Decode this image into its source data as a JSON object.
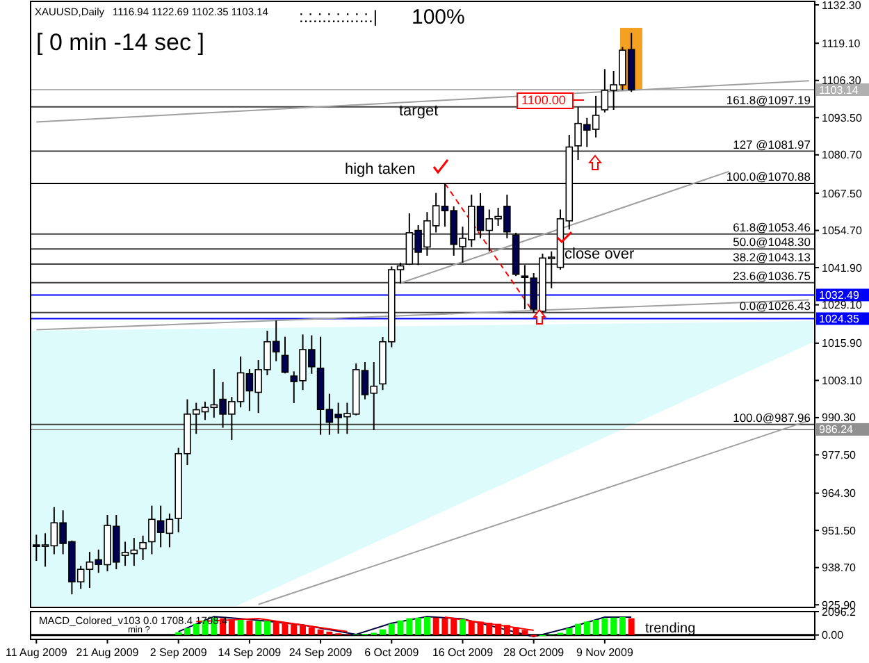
{
  "chart_data": [
    {
      "type": "candlestick",
      "title": "XAUUSD,Daily",
      "subtitle": "1116.94 1122.69 1102.35 1103.14",
      "categories": [
        null,
        null,
        null,
        null,
        null,
        null,
        null,
        null,
        null,
        null,
        null,
        null,
        null,
        null,
        null,
        null,
        null,
        null,
        null,
        null,
        null,
        null,
        null,
        null,
        null,
        null,
        null,
        null,
        null,
        null,
        null,
        null,
        null,
        null,
        null,
        null,
        null,
        null,
        null,
        null,
        null,
        null,
        null,
        null,
        null,
        null,
        null,
        null,
        null,
        null,
        null,
        null,
        null,
        null,
        null,
        null,
        null,
        null,
        null,
        null,
        null,
        null,
        null,
        null,
        null,
        null,
        null,
        null,
        null,
        null,
        null,
        null,
        null,
        null,
        null,
        null,
        null,
        null,
        null,
        null,
        null,
        null,
        null,
        null,
        null,
        null,
        null,
        null
      ],
      "ohlc": [
        [
          946.5,
          950,
          941,
          946
        ],
        [
          946,
          950.5,
          939,
          946.5
        ],
        [
          946.2,
          959.5,
          943.3,
          954.1
        ],
        [
          954.1,
          958.4,
          943.3,
          947
        ],
        [
          947.6,
          948,
          929.5,
          933.8
        ],
        [
          933.8,
          939.3,
          931.4,
          938.1
        ],
        [
          938.1,
          944.1,
          931.7,
          940.6
        ],
        [
          941.4,
          944.9,
          936.9,
          939.8
        ],
        [
          939.7,
          956.8,
          937.4,
          953.2
        ],
        [
          952.9,
          956.8,
          938.1,
          940.6
        ],
        [
          942.9,
          947.6,
          939.3,
          943.9
        ],
        [
          943.5,
          948.9,
          939.3,
          944.7
        ],
        [
          945.2,
          949.7,
          941.3,
          947.3
        ],
        [
          947.6,
          960,
          943.3,
          955.3
        ],
        [
          954.8,
          960,
          945.7,
          950.8
        ],
        [
          950.5,
          957.3,
          945.7,
          955.3
        ],
        [
          955.6,
          979.9,
          950.8,
          977.9
        ],
        [
          977.9,
          996.6,
          974,
          991.5
        ],
        [
          991.5,
          995.4,
          984.7,
          993
        ],
        [
          992.3,
          995.8,
          989.5,
          993.8
        ],
        [
          993.8,
          1007,
          990.3,
          994.7
        ],
        [
          996.6,
          1002.5,
          986.8,
          991.5
        ],
        [
          991.5,
          997.4,
          982.6,
          995.8
        ],
        [
          995.8,
          1011.3,
          993.8,
          1005.7
        ],
        [
          1005.4,
          1007,
          992.6,
          999.5
        ],
        [
          999,
          1010.1,
          991.9,
          1006.8
        ],
        [
          1006.8,
          1020.2,
          1004.9,
          1016.4
        ],
        [
          1016.5,
          1023.7,
          1009.7,
          1012.9
        ],
        [
          1011.7,
          1018.1,
          1005.5,
          1005.9
        ],
        [
          1004.6,
          1006.2,
          995.3,
          1002.7
        ],
        [
          1003,
          1018.9,
          999.8,
          1013.7
        ],
        [
          1013.7,
          1018.6,
          1005.4,
          1007.8
        ],
        [
          1007.3,
          1018.1,
          984.4,
          993.1
        ],
        [
          993.1,
          998.5,
          984.4,
          988.7
        ],
        [
          991.4,
          995.4,
          984.8,
          990.3
        ],
        [
          990.6,
          995.4,
          984.7,
          991.7
        ],
        [
          991.5,
          1008.9,
          991.1,
          1006.8
        ],
        [
          1006.5,
          1009.4,
          996.6,
          998.2
        ],
        [
          998.7,
          1009.4,
          986,
          1001.1
        ],
        [
          1001.9,
          1018,
          999.8,
          1016.4
        ],
        [
          1016.4,
          1042.3,
          1014.5,
          1041.2
        ],
        [
          1041.2,
          1043.6,
          1036.4,
          1042.5
        ],
        [
          1043.1,
          1060.6,
          1042.8,
          1053.9
        ],
        [
          1054.7,
          1056.5,
          1042.8,
          1047.2
        ],
        [
          1049,
          1061,
          1046,
          1058
        ],
        [
          1056.3,
          1067.6,
          1054,
          1063.2
        ],
        [
          1063,
          1070.88,
          1056,
          1061.5
        ],
        [
          1061.5,
          1063,
          1046,
          1049.9
        ],
        [
          1049.1,
          1056,
          1043.6,
          1052
        ],
        [
          1051.5,
          1067,
          1049,
          1063
        ],
        [
          1063,
          1067.5,
          1052,
          1054.7
        ],
        [
          1054.7,
          1061.9,
          1047.5,
          1058.7
        ],
        [
          1058.7,
          1062.5,
          1056.3,
          1059.5
        ],
        [
          1063,
          1067,
          1052,
          1054.2
        ],
        [
          1053.1,
          1053.9,
          1039,
          1039.6
        ],
        [
          1039,
          1042.8,
          1027.6,
          1038.8
        ],
        [
          1038.3,
          1040,
          1026.43,
          1027.6
        ],
        [
          1026.9,
          1046.7,
          1026.5,
          1045.2
        ],
        [
          1045.2,
          1047.5,
          1034.8,
          1045.5
        ],
        [
          1042,
          1061.9,
          1041.2,
          1058.7
        ],
        [
          1058,
          1087.6,
          1055,
          1083.4
        ],
        [
          1083.8,
          1097.2,
          1079,
          1091.5
        ],
        [
          1091.1,
          1093.4,
          1083.4,
          1089.2
        ],
        [
          1089.5,
          1101,
          1086.7,
          1094.3
        ],
        [
          1096.2,
          1110.2,
          1095.3,
          1102.9
        ],
        [
          1102.9,
          1109.6,
          1096.2,
          1104.8
        ],
        [
          1104.8,
          1117.8,
          1102.9,
          1116.7
        ],
        [
          1116.94,
          1122.69,
          1102.35,
          1103.14
        ],
        null,
        null,
        null,
        null,
        null,
        null,
        null,
        null,
        null,
        null,
        null,
        null,
        null,
        null,
        null,
        null,
        null,
        null,
        null,
        null
      ],
      "series": [
        {
          "type": "line",
          "color": "#a0a0a0",
          "values": [
            null,
            null,
            null,
            null,
            null,
            null,
            null,
            null,
            null,
            null,
            null,
            null,
            null,
            null,
            null,
            null,
            null,
            null,
            null,
            null,
            null,
            null,
            null,
            null,
            null,
            926,
            null,
            null,
            null,
            null,
            null,
            null,
            null,
            null,
            null,
            null,
            null,
            null,
            null,
            null,
            null,
            null,
            null,
            null,
            null,
            null,
            null,
            null,
            null,
            null,
            null,
            null,
            null,
            null,
            null,
            null,
            null,
            null,
            null,
            null,
            null,
            null,
            null,
            null,
            null,
            null,
            null,
            null,
            null,
            null,
            null,
            null,
            null,
            null,
            null,
            null,
            null,
            null,
            null,
            null,
            null,
            null,
            null,
            null,
            null,
            null,
            null,
            989.3
          ]
        },
        {
          "type": "line",
          "color": "#a0a0a0",
          "values": [
            1092,
            null,
            null,
            null,
            null,
            null,
            null,
            null,
            null,
            null,
            null,
            null,
            null,
            null,
            null,
            null,
            null,
            null,
            null,
            null,
            null,
            null,
            null,
            null,
            null,
            null,
            null,
            null,
            null,
            null,
            null,
            null,
            null,
            null,
            null,
            null,
            null,
            null,
            null,
            null,
            null,
            null,
            null,
            null,
            null,
            null,
            null,
            null,
            null,
            null,
            null,
            null,
            null,
            null,
            null,
            null,
            null,
            null,
            null,
            null,
            null,
            null,
            null,
            null,
            null,
            null,
            null,
            null,
            null,
            null,
            null,
            null,
            null,
            null,
            null,
            null,
            null,
            null,
            null,
            null,
            null,
            null,
            null,
            null,
            null,
            null,
            null,
            1106.2
          ]
        },
        {
          "type": "line",
          "color": "#a0a0a0",
          "values": [
            null,
            null,
            null,
            null,
            null,
            null,
            null,
            null,
            null,
            null,
            null,
            null,
            null,
            null,
            null,
            null,
            null,
            null,
            null,
            null,
            null,
            null,
            null,
            null,
            null,
            null,
            null,
            null,
            null,
            null,
            null,
            null,
            null,
            null,
            null,
            null,
            null,
            null,
            null,
            null,
            null,
            1036.6,
            null,
            null,
            null,
            null,
            null,
            null,
            null,
            null,
            null,
            null,
            null,
            null,
            null,
            null,
            null,
            null,
            null,
            null,
            null,
            null,
            null,
            null,
            null,
            null,
            null,
            null,
            null,
            null,
            null,
            null,
            null,
            null,
            null,
            null,
            null,
            null,
            1075,
            null,
            null,
            null,
            null,
            null,
            null,
            null,
            null,
            null
          ]
        },
        {
          "type": "line",
          "color": "#a0a0a0",
          "values": [
            1020.5,
            null,
            null,
            null,
            null,
            null,
            null,
            null,
            null,
            null,
            null,
            null,
            null,
            null,
            null,
            null,
            null,
            null,
            null,
            null,
            null,
            null,
            null,
            null,
            null,
            null,
            null,
            null,
            null,
            null,
            null,
            null,
            null,
            null,
            null,
            null,
            null,
            null,
            null,
            null,
            null,
            null,
            null,
            null,
            null,
            null,
            null,
            null,
            null,
            null,
            null,
            null,
            null,
            null,
            null,
            null,
            null,
            null,
            null,
            null,
            null,
            null,
            null,
            null,
            null,
            null,
            null,
            null,
            null,
            null,
            null,
            null,
            null,
            null,
            null,
            null,
            null,
            null,
            null,
            null,
            null,
            null,
            null,
            null,
            null,
            null,
            null,
            1030.8
          ]
        },
        {
          "type": "line",
          "color": "#ff0000",
          "line_style": "dashed",
          "values": [
            null,
            null,
            null,
            null,
            null,
            null,
            null,
            null,
            null,
            null,
            null,
            null,
            null,
            null,
            null,
            null,
            null,
            null,
            null,
            null,
            null,
            null,
            null,
            null,
            null,
            null,
            null,
            null,
            null,
            null,
            null,
            null,
            null,
            null,
            null,
            null,
            null,
            null,
            null,
            null,
            null,
            null,
            null,
            null,
            null,
            null,
            1070.88,
            null,
            null,
            null,
            null,
            null,
            null,
            null,
            null,
            null,
            1026.43,
            null,
            null,
            null,
            null,
            null,
            null,
            null,
            null,
            null,
            null,
            null,
            null,
            null,
            null,
            null,
            null,
            null,
            null,
            null,
            null,
            null,
            null,
            null,
            null,
            null,
            null,
            null,
            null,
            null,
            null,
            null
          ]
        }
      ],
      "ylim": [
        925,
        1133.5
      ],
      "yticks": [
        {
          "value": 1132.3,
          "label": "1132.30"
        },
        {
          "value": 1119.1,
          "label": "1119.10"
        },
        {
          "value": 1106.3,
          "label": "1106.30"
        },
        {
          "value": 1093.5,
          "label": "1093.50"
        },
        {
          "value": 1080.7,
          "label": "1080.70"
        },
        {
          "value": 1067.5,
          "label": "1067.50"
        },
        {
          "value": 1054.7,
          "label": "1054.70"
        },
        {
          "value": 1041.9,
          "label": "1041.90"
        },
        {
          "value": 1029.1,
          "label": "1029.10"
        },
        {
          "value": 1015.9,
          "label": "1015.90"
        },
        {
          "value": 1003.1,
          "label": "1003.10"
        },
        {
          "value": 990.3,
          "label": "990.30"
        },
        {
          "value": 977.5,
          "label": "977.50"
        },
        {
          "value": 964.3,
          "label": "964.30"
        },
        {
          "value": 951.5,
          "label": "951.50"
        },
        {
          "value": 938.7,
          "label": "938.70"
        },
        {
          "value": 925.9,
          "label": "925.90"
        }
      ],
      "ref_lines": [
        {
          "axis": "y",
          "value": 1103.14,
          "label": "1103.14",
          "color": "#b0b0b0"
        },
        {
          "axis": "y",
          "value": 1032.49,
          "label": "1032.49",
          "color": "#0000ff"
        },
        {
          "axis": "y",
          "value": 1024.35,
          "label": "1024.35",
          "color": "#0000ff"
        },
        {
          "axis": "y",
          "value": 986.24,
          "label": "986.24",
          "color": "#909090"
        },
        {
          "axis": "y",
          "value": 1097.19,
          "color": "#404040"
        },
        {
          "axis": "y",
          "value": 1081.97,
          "color": "#404040"
        },
        {
          "axis": "y",
          "value": 1070.88,
          "color": "#000000"
        },
        {
          "axis": "y",
          "value": 1053.46,
          "color": "#404040"
        },
        {
          "axis": "y",
          "value": 1048.3,
          "color": "#404040"
        },
        {
          "axis": "y",
          "value": 1043.13,
          "color": "#404040"
        },
        {
          "axis": "y",
          "value": 1036.75,
          "color": "#404040"
        },
        {
          "axis": "y",
          "value": 1026.43,
          "color": "#404040"
        },
        {
          "axis": "y",
          "value": 987.96,
          "color": "#404040"
        }
      ],
      "annotations": [
        "[ 0 min -14 sec ]",
        ":.:.:.:.:.:.:.:.|",
        "100%",
        "1100.00",
        "target",
        "high taken",
        "close over",
        {
          "text": "161.8@1097.19",
          "y": 1097.19
        },
        {
          "text": "127 @1081.97",
          "y": 1081.97
        },
        {
          "text": "100.0@1070.88",
          "y": 1070.88
        },
        {
          "text": "61.8@1053.46",
          "y": 1053.46
        },
        {
          "text": "50.0@1048.30",
          "y": 1048.3
        },
        {
          "text": "38.2@1043.13",
          "y": 1043.13
        },
        {
          "text": "23.6@1036.75",
          "y": 1036.75
        },
        {
          "text": "0.0@1026.43",
          "y": 1026.43
        },
        {
          "text": "100.0@987.96",
          "y": 987.96
        }
      ]
    },
    {
      "type": "bar",
      "title": "MACD_Colored_v103 0.0 1708.4 1708.4",
      "categories": [
        "11 Aug 2009",
        null,
        null,
        null,
        null,
        null,
        null,
        null,
        "21 Aug 2009",
        null,
        null,
        null,
        null,
        null,
        null,
        null,
        "2 Sep 2009",
        null,
        null,
        null,
        null,
        null,
        null,
        null,
        "14 Sep 2009",
        null,
        null,
        null,
        null,
        null,
        null,
        null,
        "24 Sep 2009",
        null,
        null,
        null,
        null,
        null,
        null,
        null,
        "6 Oct 2009",
        null,
        null,
        null,
        null,
        null,
        null,
        null,
        "16 Oct 2009",
        null,
        null,
        null,
        null,
        null,
        null,
        null,
        "28 Oct 2009",
        null,
        null,
        null,
        null,
        null,
        null,
        null,
        "9 Nov 2009",
        null,
        null,
        null,
        null,
        null,
        null,
        null,
        null,
        null,
        null,
        null,
        null,
        null,
        null,
        null,
        null,
        null,
        null,
        null,
        null,
        null,
        null,
        null
      ],
      "series": [
        {
          "type": "bar",
          "values": [
            null,
            null,
            null,
            null,
            null,
            null,
            null,
            null,
            null,
            null,
            null,
            null,
            null,
            null,
            null,
            null,
            250,
            600,
            1000,
            1300,
            1550,
            1500,
            1400,
            1350,
            1300,
            1250,
            1250,
            1200,
            1100,
            950,
            850,
            700,
            500,
            300,
            150,
            60,
            50,
            100,
            200,
            500,
            1000,
            1300,
            1500,
            1550,
            1600,
            1550,
            1500,
            1450,
            1400,
            1250,
            1200,
            1100,
            1000,
            900,
            700,
            450,
            -150,
            -100,
            50,
            200,
            600,
            1000,
            1200,
            1350,
            1500,
            1550,
            1600,
            1500,
            null,
            null,
            null,
            null,
            null,
            null,
            null,
            null,
            null,
            null,
            null,
            null,
            null,
            null,
            null,
            null,
            null,
            null,
            null,
            null
          ],
          "colors": [
            null,
            null,
            null,
            null,
            null,
            null,
            null,
            null,
            null,
            null,
            null,
            null,
            null,
            null,
            null,
            null,
            "#00ff00",
            "#00ff00",
            "#00ff00",
            "#00ff00",
            "#00ff00",
            "#ff0000",
            "#ff0000",
            "#00ff00",
            "#ff0000",
            "#00ff00",
            "#00ff00",
            "#ff0000",
            "#ff0000",
            "#ff0000",
            "#ff0000",
            "#ff0000",
            "#ff0000",
            "#ff0000",
            "#ff0000",
            "#ff0000",
            "#00ff00",
            "#00ff00",
            "#00ff00",
            "#00ff00",
            "#00ff00",
            "#00ff00",
            "#00ff00",
            "#00ff00",
            "#00ff00",
            "#ff0000",
            "#ff0000",
            "#ff0000",
            "#00ff00",
            "#ff0000",
            "#ff0000",
            "#ff0000",
            "#ff0000",
            "#ff0000",
            "#ff0000",
            "#ff0000",
            "#ff0000",
            "#00ff00",
            "#00ff00",
            "#00ff00",
            "#00ff00",
            "#00ff00",
            "#00ff00",
            "#00ff00",
            "#00ff00",
            "#00ff00",
            "#00ff00",
            "#ff0000",
            null,
            null,
            null,
            null,
            null,
            null,
            null,
            null,
            null,
            null,
            null,
            null,
            null,
            null,
            null,
            null,
            null,
            null,
            null,
            null
          ]
        },
        {
          "type": "line",
          "color": "#000040",
          "values": [
            null,
            null,
            null,
            null,
            null,
            null,
            null,
            null,
            null,
            null,
            null,
            null,
            null,
            null,
            null,
            null,
            300,
            null,
            null,
            null,
            1650,
            null,
            null,
            null,
            1400,
            null,
            null,
            null,
            null,
            null,
            900,
            null,
            null,
            null,
            null,
            null,
            50,
            null,
            null,
            null,
            1050,
            null,
            null,
            null,
            1650,
            null,
            null,
            null,
            1450,
            null,
            null,
            null,
            null,
            null,
            null,
            null,
            -150,
            null,
            null,
            null,
            650,
            null,
            null,
            null,
            1600,
            null,
            null,
            1600,
            null,
            null,
            null,
            null,
            null,
            null,
            null,
            null,
            null,
            null,
            null,
            null,
            null,
            null,
            null,
            null,
            null,
            null,
            null,
            null
          ]
        },
        {
          "type": "line",
          "color": "#ff0000",
          "values": [
            null,
            null,
            null,
            null,
            null,
            null,
            null,
            null,
            null,
            null,
            null,
            null,
            null,
            null,
            null,
            null,
            null,
            null,
            1200,
            null,
            null,
            null,
            null,
            null,
            null,
            1470,
            null,
            null,
            null,
            null,
            null,
            null,
            null,
            null,
            null,
            300,
            null,
            null,
            null,
            null,
            null,
            null,
            null,
            null,
            null,
            null,
            null,
            null,
            null,
            null,
            null,
            null,
            null,
            null,
            null,
            null,
            null,
            null,
            null,
            null,
            null,
            null,
            null,
            null,
            null,
            null,
            null,
            null,
            null,
            null,
            null,
            null,
            null,
            null,
            null,
            null,
            null,
            null,
            null,
            null,
            null,
            null,
            null,
            null,
            null,
            null,
            null,
            null
          ]
        },
        {
          "type": "line",
          "color": "#ff0000",
          "values": [
            null,
            null,
            null,
            null,
            null,
            null,
            null,
            null,
            null,
            null,
            null,
            null,
            null,
            null,
            null,
            null,
            null,
            null,
            null,
            null,
            null,
            null,
            null,
            null,
            null,
            null,
            null,
            null,
            null,
            null,
            null,
            null,
            null,
            null,
            null,
            null,
            null,
            null,
            null,
            null,
            null,
            null,
            null,
            null,
            null,
            null,
            1600,
            null,
            null,
            null,
            null,
            null,
            null,
            null,
            null,
            null,
            420,
            null,
            null,
            null,
            null,
            null,
            null,
            null,
            null,
            null,
            null,
            null,
            null,
            null,
            null,
            null,
            null,
            null,
            null,
            null,
            null,
            null,
            null,
            null,
            null,
            null,
            null,
            null,
            null,
            null,
            null,
            null
          ]
        }
      ],
      "ylim": [
        -393,
        2096.2
      ],
      "yticks": [
        {
          "value": 2096.2,
          "label": "2096.2"
        },
        {
          "value": 0,
          "label": "0.00"
        }
      ],
      "annotations": [
        "min ?",
        "trending"
      ]
    }
  ]
}
